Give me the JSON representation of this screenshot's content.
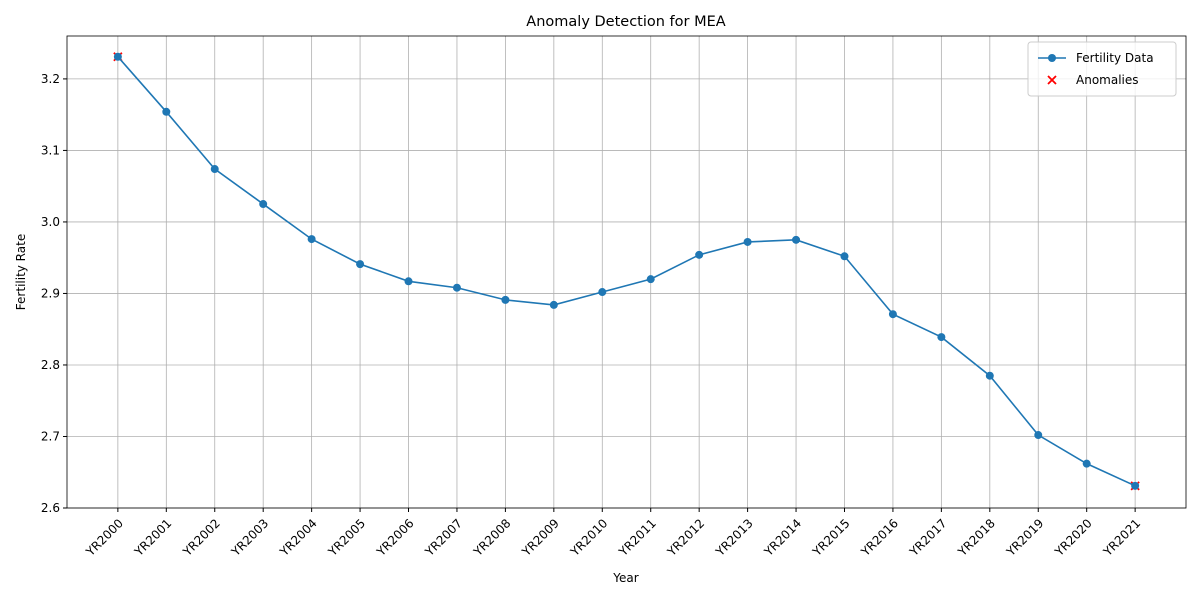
{
  "chart_data": {
    "type": "line",
    "title": "Anomaly Detection for MEA",
    "x_label": "Year",
    "y_label": "Fertility Rate",
    "categories": [
      "YR2000",
      "YR2001",
      "YR2002",
      "YR2003",
      "YR2004",
      "YR2005",
      "YR2006",
      "YR2007",
      "YR2008",
      "YR2009",
      "YR2010",
      "YR2011",
      "YR2012",
      "YR2013",
      "YR2014",
      "YR2015",
      "YR2016",
      "YR2017",
      "YR2018",
      "YR2019",
      "YR2020",
      "YR2021"
    ],
    "series": [
      {
        "name": "Fertility Data",
        "color": "#1f77b4",
        "marker": "o",
        "values": [
          3.231,
          3.154,
          3.074,
          3.025,
          2.976,
          2.941,
          2.917,
          2.908,
          2.891,
          2.884,
          2.902,
          2.92,
          2.954,
          2.972,
          2.975,
          2.952,
          2.871,
          2.839,
          2.785,
          2.702,
          2.662,
          2.631
        ]
      },
      {
        "name": "Anomalies",
        "color": "#ff0000",
        "marker": "x",
        "values": [
          3.231,
          null,
          null,
          null,
          null,
          null,
          null,
          null,
          null,
          null,
          null,
          null,
          null,
          null,
          null,
          null,
          null,
          null,
          null,
          null,
          null,
          2.631
        ]
      }
    ],
    "ylim": [
      2.6,
      3.26
    ],
    "yticks": [
      2.6,
      2.7,
      2.8,
      2.9,
      {
        "value": 3,
        "label": "3.0"
      },
      3.1,
      3.2
    ],
    "grid": true,
    "legend": "upper right"
  }
}
